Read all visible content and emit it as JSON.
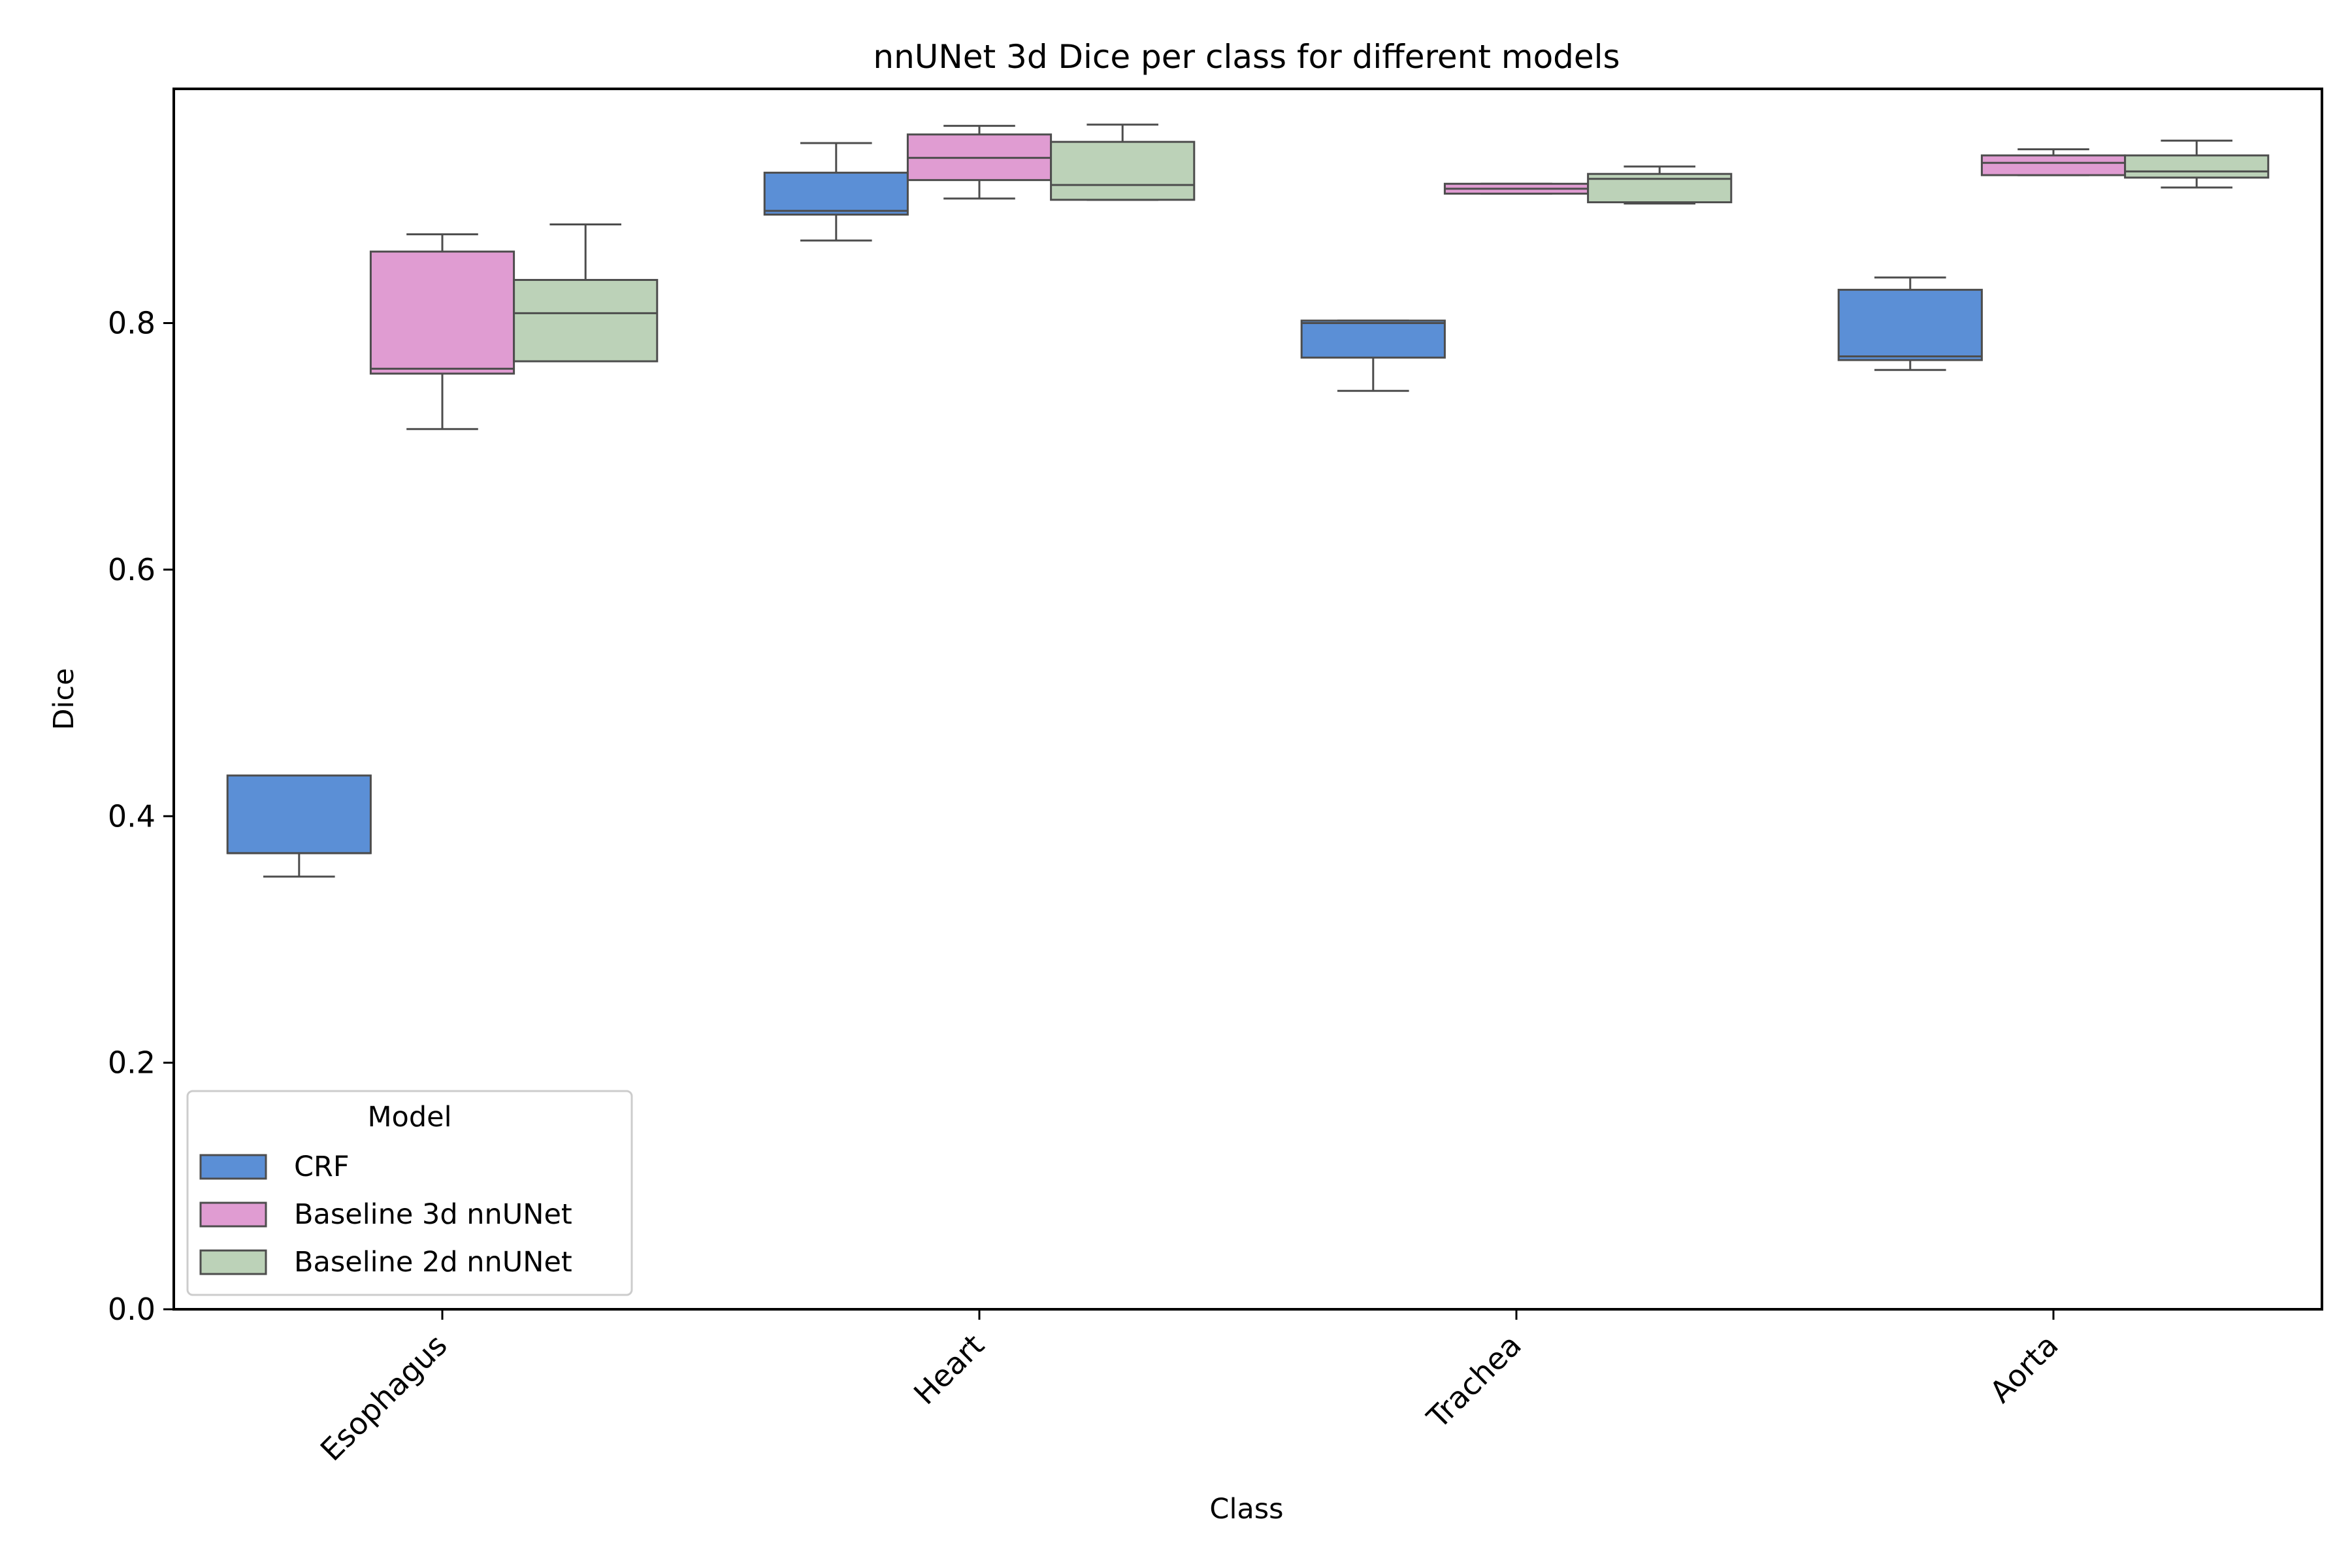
{
  "chart_data": {
    "type": "box",
    "title": "nnUNet 3d Dice per class for different models",
    "xlabel": "Class",
    "ylabel": "Dice",
    "ylim": [
      0,
      0.99
    ],
    "yticks": [
      "0.0",
      "0.2",
      "0.4",
      "0.6",
      "0.8"
    ],
    "categories": [
      "Esophagus",
      "Heart",
      "Trachea",
      "Aorta"
    ],
    "grid": false,
    "legend": {
      "title": "Model",
      "placement": "lower-left"
    },
    "series": [
      {
        "name": "CRF",
        "color": "#5b8fd6",
        "boxes": [
          {
            "whislo": 0.351,
            "q1": 0.37,
            "med": 0.37,
            "q3": 0.433,
            "whishi": 0.433
          },
          {
            "whislo": 0.867,
            "q1": 0.888,
            "med": 0.891,
            "q3": 0.922,
            "whishi": 0.946
          },
          {
            "whislo": 0.745,
            "q1": 0.772,
            "med": 0.8,
            "q3": 0.802,
            "whishi": 0.802
          },
          {
            "whislo": 0.762,
            "q1": 0.77,
            "med": 0.773,
            "q3": 0.827,
            "whishi": 0.837
          }
        ]
      },
      {
        "name": "Baseline 3d nnUNet",
        "color": "#e09cd2",
        "boxes": [
          {
            "whislo": 0.714,
            "q1": 0.759,
            "med": 0.763,
            "q3": 0.858,
            "whishi": 0.872
          },
          {
            "whislo": 0.901,
            "q1": 0.916,
            "med": 0.934,
            "q3": 0.953,
            "whishi": 0.96
          },
          {
            "whislo": 0.905,
            "q1": 0.905,
            "med": 0.909,
            "q3": 0.913,
            "whishi": 0.913
          },
          {
            "whislo": 0.92,
            "q1": 0.92,
            "med": 0.93,
            "q3": 0.936,
            "whishi": 0.941
          }
        ]
      },
      {
        "name": "Baseline 2d nnUNet",
        "color": "#bcd2b8",
        "boxes": [
          {
            "whislo": 0.769,
            "q1": 0.769,
            "med": 0.808,
            "q3": 0.835,
            "whishi": 0.88
          },
          {
            "whislo": 0.9,
            "q1": 0.9,
            "med": 0.912,
            "q3": 0.947,
            "whishi": 0.961
          },
          {
            "whislo": 0.897,
            "q1": 0.898,
            "med": 0.917,
            "q3": 0.921,
            "whishi": 0.927
          },
          {
            "whislo": 0.91,
            "q1": 0.918,
            "med": 0.923,
            "q3": 0.936,
            "whishi": 0.948
          }
        ]
      }
    ]
  }
}
